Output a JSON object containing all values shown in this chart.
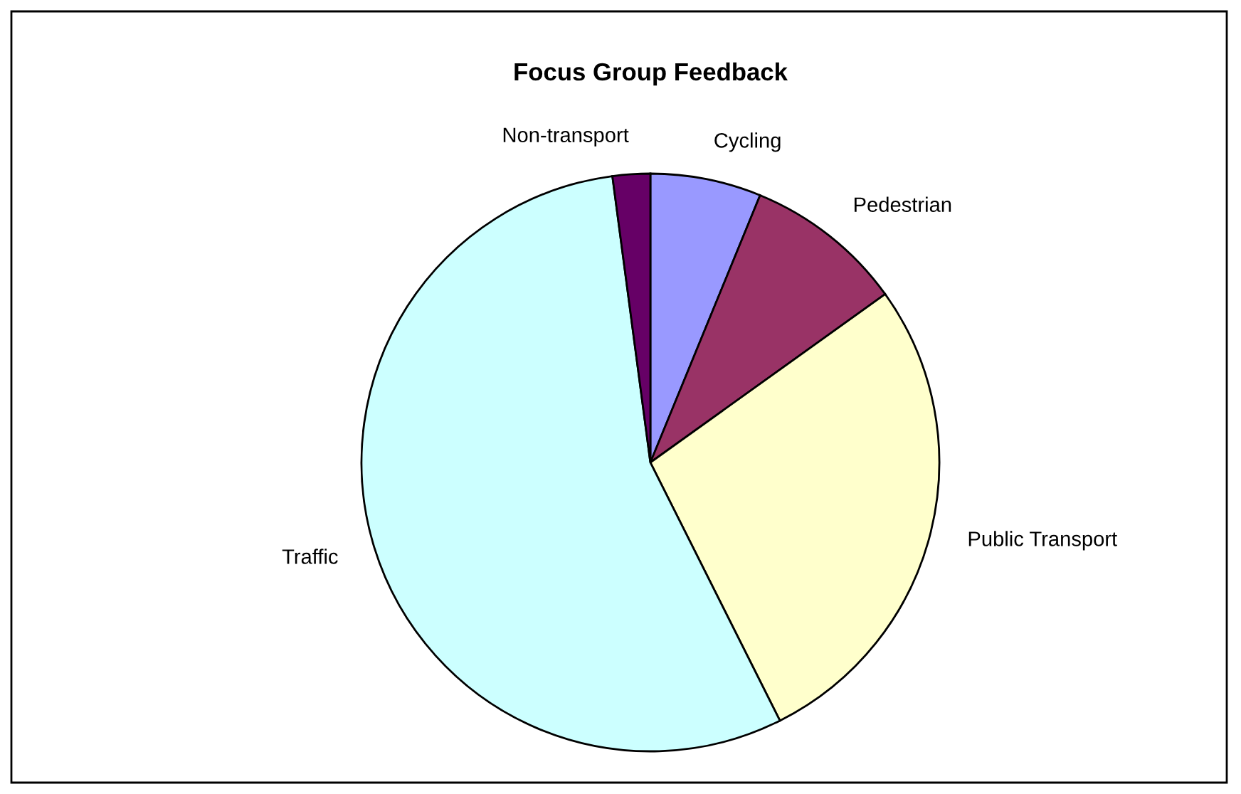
{
  "chart_data": {
    "type": "pie",
    "title": "Focus Group Feedback",
    "categories": [
      "Cycling",
      "Pedestrian",
      "Public Transport",
      "Traffic",
      "Non-transport"
    ],
    "values": [
      6.2,
      8.9,
      27.5,
      55.3,
      2.1
    ],
    "colors": [
      "#9999ff",
      "#993366",
      "#ffffcc",
      "#ccffff",
      "#660066"
    ],
    "legend": false
  }
}
